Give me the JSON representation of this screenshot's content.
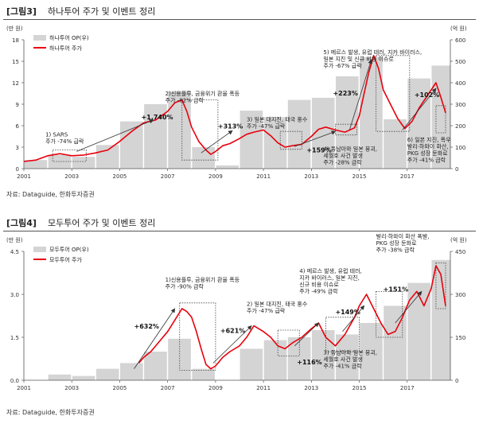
{
  "figures": [
    {
      "label": "[그림3]",
      "title": "하나투어 주가 및 이벤트 정리",
      "source": "자료: Dataguide, 한화투자증권"
    },
    {
      "label": "[그림4]",
      "title": "모두투어 주가 및 이벤트 정리",
      "source": "자료: Dataguide, 한화투자증권"
    }
  ],
  "chart_data": [
    {
      "type": "bar",
      "left_unit": "(만 원)",
      "right_unit": "(억 원)",
      "ylim_left": [
        0,
        18
      ],
      "ylim_right": [
        0,
        600
      ],
      "yticks_left": [
        "0",
        "3",
        "6",
        "9",
        "12",
        "15",
        "18"
      ],
      "yticks_right": [
        "0",
        "100",
        "200",
        "300",
        "400",
        "500",
        "600"
      ],
      "xlim": [
        2001,
        2018.8
      ],
      "xticks": [
        "2001",
        "2003",
        "2005",
        "2007",
        "2009",
        "2011",
        "2013",
        "2015",
        "2017"
      ],
      "grid": false,
      "legend_position": "top-left",
      "series": [
        {
          "name": "하나투어 OP(우)",
          "color": "#d4d4d4",
          "x": [
            2001,
            2002,
            2003,
            2004,
            2005,
            2006,
            2007,
            2008,
            2009,
            2010,
            2011,
            2012,
            2013,
            2014,
            2015,
            2016,
            2017,
            2018
          ],
          "values": [
            40,
            65,
            55,
            110,
            220,
            300,
            360,
            100,
            15,
            270,
            240,
            320,
            330,
            430,
            520,
            230,
            420,
            480
          ]
        },
        {
          "name": "하나투어 주가",
          "color": "#e8000b",
          "x": [
            2001.0,
            2001.5,
            2002.0,
            2002.5,
            2003.0,
            2003.5,
            2004.0,
            2004.5,
            2005.0,
            2005.5,
            2006.0,
            2006.5,
            2007.0,
            2007.3,
            2007.6,
            2007.8,
            2008.0,
            2008.3,
            2008.6,
            2008.8,
            2009.0,
            2009.3,
            2009.6,
            2010.0,
            2010.3,
            2010.6,
            2011.0,
            2011.3,
            2011.6,
            2011.9,
            2012.2,
            2012.6,
            2013.0,
            2013.3,
            2013.6,
            2014.0,
            2014.4,
            2014.8,
            2015.0,
            2015.2,
            2015.4,
            2015.6,
            2015.8,
            2016.0,
            2016.3,
            2016.6,
            2016.9,
            2017.2,
            2017.5,
            2017.8,
            2018.0,
            2018.2,
            2018.4,
            2018.6
          ],
          "values": [
            1.0,
            1.2,
            1.8,
            2.1,
            1.8,
            1.9,
            2.2,
            2.6,
            3.8,
            5.2,
            6.4,
            6.8,
            8.0,
            9.2,
            9.6,
            8.0,
            5.8,
            3.8,
            2.6,
            2.0,
            2.4,
            3.2,
            3.5,
            4.2,
            4.8,
            5.1,
            5.4,
            4.6,
            3.6,
            3.0,
            3.2,
            3.4,
            4.5,
            5.5,
            5.8,
            5.4,
            5.1,
            5.7,
            7.4,
            10.5,
            13.5,
            15.8,
            14.0,
            11.0,
            9.0,
            7.0,
            5.6,
            6.6,
            8.5,
            10.0,
            11.0,
            12.0,
            10.0,
            7.8
          ]
        }
      ],
      "boxes": [
        {
          "x0": 2002.2,
          "x1": 2003.6,
          "y0": 1.0,
          "y1": 2.6
        },
        {
          "x0": 2007.6,
          "x1": 2009.1,
          "y0": 1.2,
          "y1": 9.6
        },
        {
          "x0": 2011.7,
          "x1": 2012.6,
          "y0": 2.7,
          "y1": 5.2
        },
        {
          "x0": 2014.0,
          "x1": 2014.9,
          "y0": 4.7,
          "y1": 6.2
        },
        {
          "x0": 2015.7,
          "x1": 2017.1,
          "y0": 5.2,
          "y1": 15.8
        },
        {
          "x0": 2018.2,
          "x1": 2018.6,
          "y0": 5.0,
          "y1": 8.8
        }
      ],
      "arrows": [
        {
          "x0": 2003.2,
          "y0": 2.4,
          "x1": 2006.4,
          "y1": 6.8
        },
        {
          "x0": 2008.4,
          "y0": 2.2,
          "x1": 2009.7,
          "y1": 5.3
        },
        {
          "x0": 2012.3,
          "y0": 3.1,
          "x1": 2014.0,
          "y1": 5.2
        },
        {
          "x0": 2014.6,
          "y0": 5.5,
          "x1": 2015.5,
          "y1": 15.2
        },
        {
          "x0": 2016.8,
          "y0": 5.4,
          "x1": 2018.2,
          "y1": 11.2
        }
      ],
      "annotations": [
        {
          "lines": [
            "1) SARS",
            "주가 -74%  급락"
          ],
          "x": 2001.9,
          "y": 4.5
        },
        {
          "lines": [
            "2)신용플루, 금융위기 환율 폭등",
            "주가 -82%  급락"
          ],
          "x": 2006.9,
          "y": 10.2
        },
        {
          "lines": [
            "3) 일본 대지진, 태국 홍수",
            "주가 -47%  급락"
          ],
          "x": 2010.3,
          "y": 6.6
        },
        {
          "lines": [
            "4) 동남아와 일본 붕괴,",
            "세월호 사건 발생",
            "주가 -28%  급락"
          ],
          "x": 2013.5,
          "y": 2.5
        },
        {
          "lines": [
            "5) 메르스 발생, 유럽 테러,  지카 바이러스,",
            "일본 지진 및 신규 비용 이슈로",
            "주가 -67% 급락"
          ],
          "x": 2013.5,
          "y": 16.0
        },
        {
          "lines": [
            "6) 일본 지진, 폭우",
            "발리·하와이 화산,",
            "PKG 성장 둔화로",
            "주가 -41% 급락"
          ],
          "x": 2017.0,
          "y": 3.8
        }
      ],
      "labels": [
        {
          "text": "+1,740%",
          "x": 2005.9,
          "y": 6.9
        },
        {
          "text": "+313%",
          "x": 2009.1,
          "y": 5.6
        },
        {
          "text": "+159%",
          "x": 2012.8,
          "y": 2.3
        },
        {
          "text": "+223%",
          "x": 2013.9,
          "y": 10.2
        },
        {
          "text": "+102%",
          "x": 2017.3,
          "y": 10.0
        }
      ]
    },
    {
      "type": "bar",
      "left_unit": "(만 원)",
      "right_unit": "(억 원)",
      "ylim_left": [
        0,
        4.5
      ],
      "ylim_right": [
        0,
        450
      ],
      "yticks_left": [
        "0.0",
        "1.5",
        "3.0",
        "4.5"
      ],
      "yticks_right": [
        "0",
        "150",
        "300",
        "450"
      ],
      "xlim": [
        2001,
        2018.8
      ],
      "xticks": [
        "2001",
        "2003",
        "2005",
        "2007",
        "2009",
        "2011",
        "2013",
        "2015",
        "2017"
      ],
      "grid": false,
      "legend_position": "top-left",
      "series": [
        {
          "name": "모두투어 OP(우)",
          "color": "#d4d4d4",
          "x": [
            2001,
            2002,
            2003,
            2004,
            2005,
            2006,
            2007,
            2008,
            2009,
            2010,
            2011,
            2012,
            2013,
            2014,
            2015,
            2016,
            2017,
            2018
          ],
          "values": [
            0,
            20,
            15,
            40,
            60,
            100,
            145,
            40,
            0,
            110,
            140,
            150,
            175,
            160,
            200,
            260,
            340,
            420
          ]
        },
        {
          "name": "모두투어 주가",
          "color": "#e8000b",
          "x": [
            2005.8,
            2006.0,
            2006.3,
            2006.6,
            2007.0,
            2007.3,
            2007.6,
            2007.8,
            2008.0,
            2008.2,
            2008.4,
            2008.6,
            2008.8,
            2009.0,
            2009.3,
            2009.6,
            2010.0,
            2010.3,
            2010.6,
            2011.0,
            2011.3,
            2011.6,
            2011.9,
            2012.2,
            2012.6,
            2013.0,
            2013.3,
            2013.6,
            2014.0,
            2014.4,
            2014.8,
            2015.0,
            2015.3,
            2015.6,
            2015.9,
            2016.2,
            2016.5,
            2016.8,
            2017.1,
            2017.4,
            2017.7,
            2018.0,
            2018.2,
            2018.4,
            2018.6
          ],
          "values": [
            0.6,
            0.8,
            1.0,
            1.3,
            1.7,
            2.1,
            2.5,
            2.4,
            2.2,
            1.7,
            1.1,
            0.55,
            0.4,
            0.5,
            0.8,
            1.0,
            1.2,
            1.5,
            1.9,
            1.7,
            1.5,
            1.2,
            1.1,
            1.3,
            1.5,
            1.8,
            2.0,
            1.5,
            1.2,
            1.6,
            2.2,
            2.6,
            3.0,
            2.5,
            2.0,
            1.6,
            1.7,
            2.2,
            2.8,
            3.1,
            2.6,
            3.2,
            4.0,
            3.7,
            2.6
          ]
        }
      ],
      "boxes": [
        {
          "x0": 2007.5,
          "x1": 2009.0,
          "y0": 0.35,
          "y1": 2.7
        },
        {
          "x0": 2011.6,
          "x1": 2012.5,
          "y0": 0.85,
          "y1": 1.75
        },
        {
          "x0": 2013.6,
          "x1": 2015.0,
          "y0": 1.0,
          "y1": 2.2
        },
        {
          "x0": 2015.7,
          "x1": 2016.8,
          "y0": 1.5,
          "y1": 3.1
        },
        {
          "x0": 2018.2,
          "x1": 2018.6,
          "y0": 2.5,
          "y1": 4.1
        }
      ],
      "arrows": [
        {
          "x0": 2005.6,
          "y0": 0.4,
          "x1": 2007.3,
          "y1": 2.5
        },
        {
          "x0": 2008.9,
          "y0": 0.6,
          "x1": 2010.5,
          "y1": 1.9
        },
        {
          "x0": 2012.3,
          "y0": 1.2,
          "x1": 2013.3,
          "y1": 2.0
        },
        {
          "x0": 2014.3,
          "y0": 1.7,
          "x1": 2015.2,
          "y1": 2.6
        },
        {
          "x0": 2016.5,
          "y0": 2.0,
          "x1": 2017.6,
          "y1": 3.1
        }
      ],
      "annotations": [
        {
          "lines": [
            "1)신용플루, 금융위기 환율 폭등",
            "주가 -90% 급락"
          ],
          "x": 2006.9,
          "y": 3.45
        },
        {
          "lines": [
            "2) 일본 대지진, 태국 홍수",
            "주가 -47% 급락"
          ],
          "x": 2010.3,
          "y": 2.6
        },
        {
          "lines": [
            "4) 메르스 발생, 유럽 테러,",
            "지카 바이러스, 일본 지진,",
            "신규 비용 이슈로",
            "주가 -49% 급락"
          ],
          "x": 2012.5,
          "y": 3.75
        },
        {
          "lines": [
            "3) 동남아와 일본 붕괴,",
            "세월호 사건 발생",
            "주가 -41% 급락"
          ],
          "x": 2013.5,
          "y": 0.9
        },
        {
          "lines": [
            "5) 일본 지진, 폭우",
            "발리·하와이 화산 폭발,",
            "PKG 성장 둔화로",
            "주가 -38% 급락"
          ],
          "x": 2015.7,
          "y": 5.2
        }
      ],
      "labels": [
        {
          "text": "+632%",
          "x": 2005.6,
          "y": 1.8
        },
        {
          "text": "+621%",
          "x": 2009.2,
          "y": 1.65
        },
        {
          "text": "+116%",
          "x": 2012.4,
          "y": 0.55
        },
        {
          "text": "+149%",
          "x": 2014.0,
          "y": 2.3
        },
        {
          "text": "+151%",
          "x": 2016.0,
          "y": 3.1
        }
      ]
    }
  ]
}
